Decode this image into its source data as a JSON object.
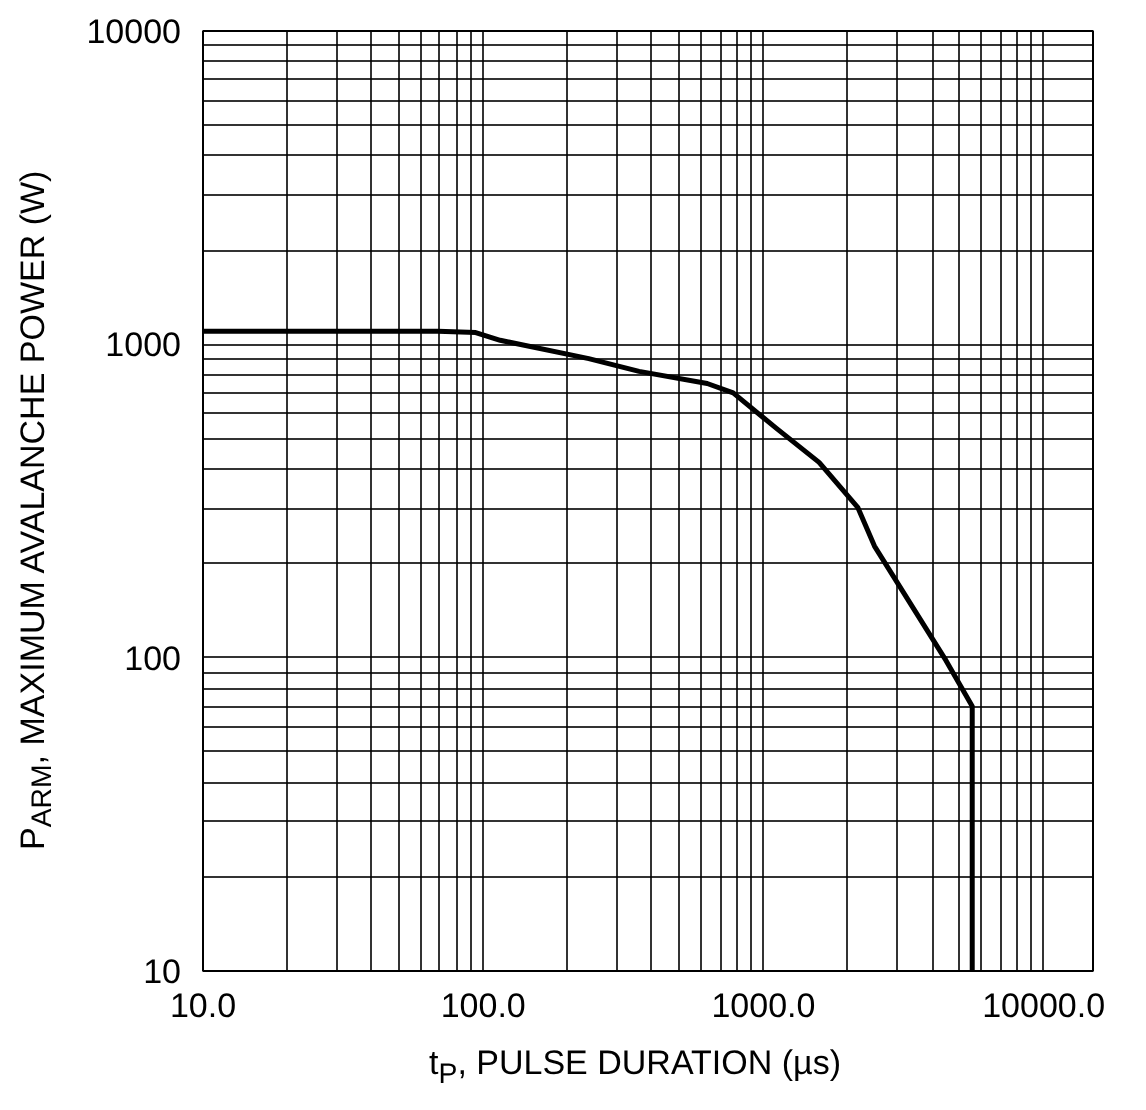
{
  "chart_data": {
    "type": "line",
    "xlabel": "t$_{P}$, PULSE DURATION (µs)",
    "ylabel": "P$_{ARM}$, MAXIMUM AVALANCHE POWER (W)",
    "log": "xy",
    "grid": true,
    "marker": "none",
    "line_style": "solid",
    "xlim": [
      10,
      15000
    ],
    "ylim": [
      10,
      10000
    ],
    "xticks": [
      {
        "value": 10,
        "label": "10.0"
      },
      {
        "value": 100,
        "label": "100.0"
      },
      {
        "value": 1000,
        "label": "1000.0"
      },
      {
        "value": 10000,
        "label": "10000.0"
      }
    ],
    "yticks": [
      10,
      100,
      1000,
      10000
    ],
    "series": [
      {
        "color": "#000000",
        "x": [
          10,
          69,
          94,
          115,
          238,
          360,
          630,
          780,
          1110,
          1580,
          2170,
          2490,
          4480,
          5560,
          5560
        ],
        "values": [
          1100,
          1100,
          1090,
          1030,
          900,
          820,
          750,
          700,
          540,
          420,
          302,
          227,
          98,
          70,
          10
        ]
      }
    ]
  }
}
